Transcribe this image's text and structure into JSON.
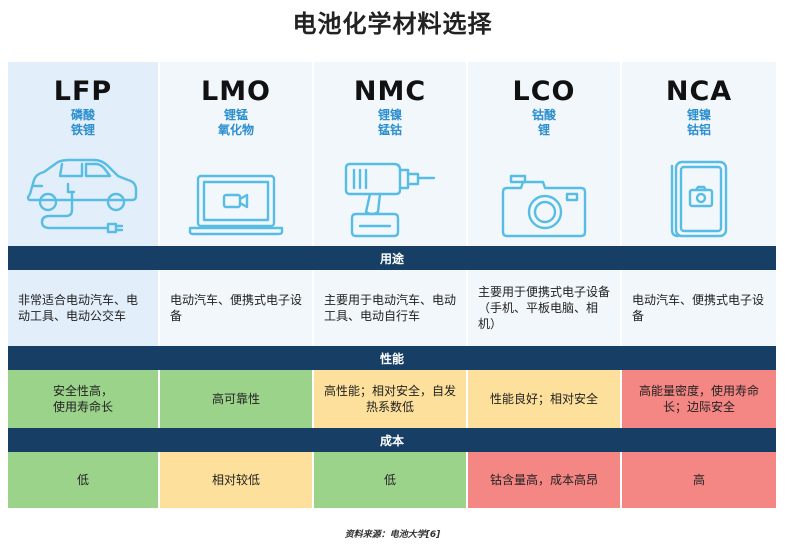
{
  "title": "电池化学材料选择",
  "chemistries": [
    {
      "abbr": "LFP",
      "sub1": "磷酸",
      "sub2": "铁锂",
      "icon": "electric-car-icon",
      "use": "非常适合电动汽车、电动工具、电动公交车",
      "perf": "安全性高，\n使用寿命长",
      "cost": "低"
    },
    {
      "abbr": "LMO",
      "sub1": "锂锰",
      "sub2": "氧化物",
      "icon": "laptop-video-icon",
      "use": "电动汽车、便携式电子设备",
      "perf": "高可靠性",
      "cost": "相对较低"
    },
    {
      "abbr": "NMC",
      "sub1": "锂镍",
      "sub2": "锰钴",
      "icon": "power-drill-icon",
      "use": "主要用于电动汽车、电动工具、电动自行车",
      "perf": "高性能；相对安全，自发热系数低",
      "cost": "低"
    },
    {
      "abbr": "LCO",
      "sub1": "钴酸",
      "sub2": "锂",
      "icon": "camera-icon",
      "use": "主要用于便携式电子设备（手机、平板电脑、相机）",
      "perf": "性能良好；相对安全",
      "cost": "钴含量高，成本高昂"
    },
    {
      "abbr": "NCA",
      "sub1": "锂镍",
      "sub2": "钴铝",
      "icon": "smartphone-camera-icon",
      "use": "电动汽车、便携式电子设备",
      "perf": "高能量密度，使用寿命长；边际安全",
      "cost": "高"
    }
  ],
  "sections": {
    "use": "用途",
    "perf": "性能",
    "cost": "成本"
  },
  "colors": {
    "header_band": "#173f66",
    "accent": "#2b8fcf",
    "icon": "#58bde4",
    "good": "#9bd38b",
    "medium": "#fde09b",
    "bad": "#f48684"
  },
  "source": "资料来源：电池大学[6]"
}
